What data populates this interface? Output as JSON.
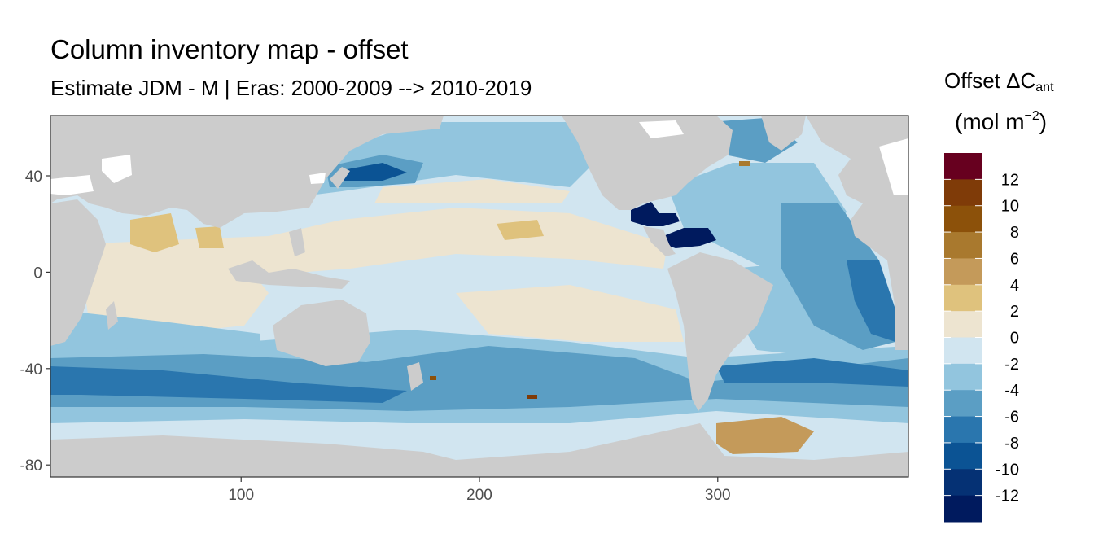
{
  "title": "Column inventory map - offset",
  "subtitle": "Estimate JDM - M | Eras: 2000-2009 --> 2010-2019",
  "legend": {
    "title_main": "Offset ΔC",
    "title_sub": "ant",
    "unit_main": "(mol m",
    "unit_sup": "−2",
    "unit_close": ")",
    "breaks": [
      "12",
      "10",
      "8",
      "6",
      "4",
      "2",
      "0",
      "-2",
      "-4",
      "-6",
      "-8",
      "-10",
      "-12"
    ],
    "colors": [
      "#67001f",
      "#7f3b08",
      "#8c510a",
      "#a9792e",
      "#c49a5a",
      "#dfc27d",
      "#ede4d0",
      "#d1e5f0",
      "#92c5de",
      "#5b9ec4",
      "#2a76ae",
      "#0b5394",
      "#053174",
      "#001a5e"
    ]
  },
  "axes": {
    "x_ticks": [
      {
        "value": 100,
        "label": "100"
      },
      {
        "value": 200,
        "label": "200"
      },
      {
        "value": 300,
        "label": "300"
      }
    ],
    "y_ticks": [
      {
        "value": 40,
        "label": "40"
      },
      {
        "value": 0,
        "label": "0"
      },
      {
        "value": -40,
        "label": "-40"
      },
      {
        "value": -80,
        "label": "-80"
      }
    ],
    "xlim": [
      20,
      380
    ],
    "ylim": [
      -85,
      65
    ]
  },
  "colors": {
    "land": "#cccccc",
    "panel_border": "#333333"
  }
}
